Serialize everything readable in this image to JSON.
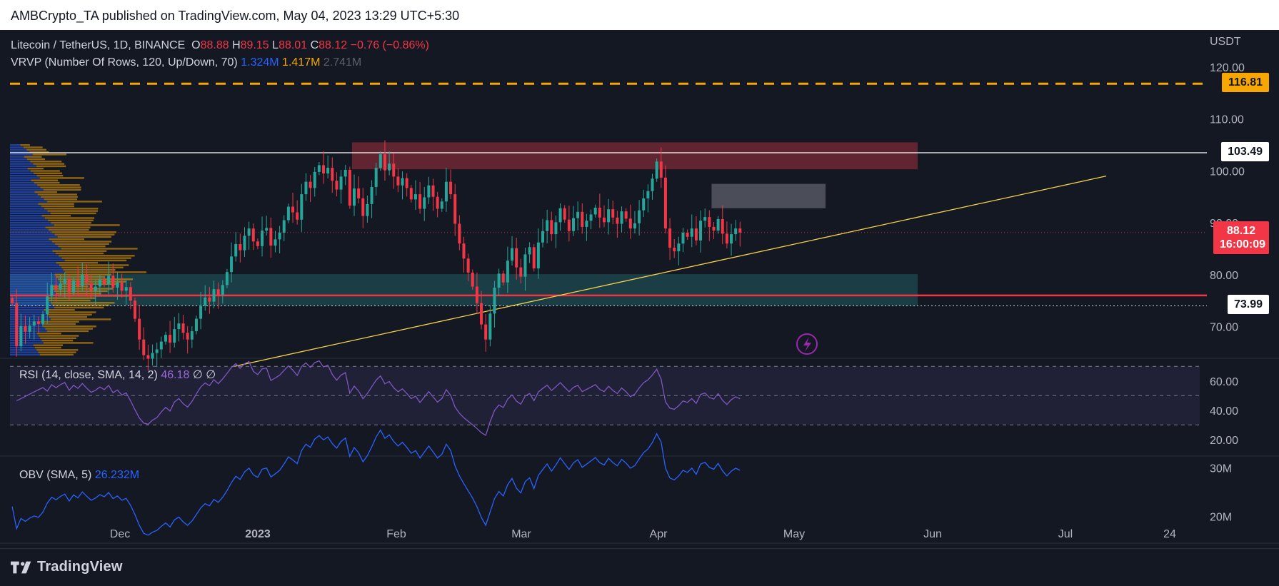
{
  "header": {
    "published_by": "AMBCrypto_TA published on TradingView.com, May 04, 2023 13:29 UTC+5:30"
  },
  "legend": {
    "symbol": "Litecoin / TetherUS, 1D, BINANCE",
    "o_label": "O",
    "o_value": "88.88",
    "h_label": "H",
    "h_value": "89.15",
    "l_label": "L",
    "l_value": "88.01",
    "c_label": "C",
    "c_value": "88.12",
    "change": "−0.76 (−0.86%)",
    "vrvp_label": "VRVP (Number Of Rows, 120, Up/Down, 70)",
    "vrvp_up": "1.324M",
    "vrvp_down": "1.417M",
    "vrvp_total": "2.741M"
  },
  "price_axis": {
    "currency": "USDT",
    "ticks": [
      "120.00",
      "110.00",
      "100.00",
      "90.00",
      "80.00",
      "70.00"
    ],
    "tag_upper": "116.81",
    "tag_resistance": "103.49",
    "tag_current": "88.12",
    "tag_countdown": "16:00:09",
    "tag_support": "73.99"
  },
  "rsi": {
    "label": "RSI (14, close, SMA, 14, 2)",
    "value": "46.18",
    "extra": "∅ ∅",
    "ticks": [
      "60.00",
      "40.00",
      "20.00"
    ]
  },
  "obv": {
    "label": "OBV (SMA, 5)",
    "value": "26.232M",
    "ticks": [
      "30M",
      "20M"
    ]
  },
  "time_axis": [
    "Dec",
    "2023",
    "Feb",
    "Mar",
    "Apr",
    "May",
    "Jun",
    "Jul",
    "24"
  ],
  "brand": {
    "name": "TradingView"
  },
  "colors": {
    "background": "#141823",
    "up": "#26a69a",
    "down": "#f23645",
    "rsi_line": "#7e57c2",
    "obv_line": "#2962ff",
    "trendline": "#f7d34a",
    "resistance_zone": "#7a2a36",
    "support_zone": "#1e4a52",
    "grey_zone": "#5d606b"
  },
  "chart_data": {
    "type": "candlestick",
    "title": "Litecoin / TetherUS, 1D, BINANCE",
    "ylabel": "USDT",
    "ylim": [
      62,
      123
    ],
    "x_start": "2022-11-10",
    "x_end": "2023-05-04",
    "levels": {
      "dashed_orange": 116.81,
      "resistance_line": 103.49,
      "support_red": 76.0,
      "support_dotted": 73.99
    },
    "zones": [
      {
        "name": "resistance",
        "x_from": "2023-01-27",
        "x_to": "2023-06-05",
        "y_from": 100.3,
        "y_to": 105.5
      },
      {
        "name": "grey-gap",
        "x_from": "2023-04-19",
        "x_to": "2023-05-15",
        "y_from": 92.8,
        "y_to": 97.5
      },
      {
        "name": "support",
        "x_from": "2022-11-10",
        "x_to": "2023-06-05",
        "y_from": 74.0,
        "y_to": 80.1
      }
    ],
    "trendline": {
      "x1": "2022-12-31",
      "y1": 62.3,
      "x2": "2023-07-18",
      "y2": 99.0
    },
    "closes": [
      74.5,
      66.2,
      70.1,
      69.0,
      70.2,
      71.0,
      70.5,
      72.4,
      75.8,
      78.0,
      77.1,
      78.3,
      79.2,
      76.6,
      78.9,
      77.8,
      80.0,
      78.4,
      76.9,
      77.7,
      79.0,
      78.2,
      79.8,
      77.5,
      78.5,
      76.9,
      77.6,
      75.0,
      71.5,
      67.5,
      64.5,
      63.8,
      64.9,
      65.6,
      67.1,
      68.4,
      66.9,
      69.5,
      70.6,
      68.8,
      67.5,
      69.1,
      71.5,
      74.0,
      75.6,
      74.8,
      77.2,
      76.1,
      78.0,
      80.5,
      83.5,
      85.9,
      84.7,
      87.5,
      88.9,
      86.4,
      85.5,
      88.5,
      89.0,
      85.6,
      86.8,
      88.1,
      90.5,
      93.1,
      92.0,
      90.6,
      95.5,
      97.9,
      96.7,
      99.8,
      101.1,
      99.5,
      100.6,
      98.1,
      96.4,
      98.9,
      100.2,
      93.3,
      96.6,
      94.7,
      91.3,
      93.6,
      96.9,
      100.6,
      103.2,
      100.1,
      101.4,
      98.9,
      97.2,
      98.6,
      96.7,
      94.5,
      95.5,
      92.7,
      94.9,
      97.2,
      95.0,
      92.7,
      94.1,
      97.9,
      95.5,
      89.8,
      86.0,
      83.1,
      80.4,
      77.7,
      74.5,
      70.4,
      67.5,
      72.5,
      77.5,
      80.2,
      78.5,
      82.7,
      85.1,
      81.4,
      79.6,
      83.9,
      85.3,
      81.2,
      86.2,
      88.4,
      90.5,
      87.8,
      90.1,
      92.8,
      90.6,
      88.4,
      90.9,
      92.1,
      89.2,
      90.4,
      91.6,
      92.9,
      91.0,
      90.1,
      92.6,
      91.0,
      89.8,
      92.2,
      90.8,
      88.9,
      89.9,
      92.4,
      94.7,
      96.1,
      98.5,
      101.8,
      98.7,
      88.9,
      85.2,
      84.5,
      86.0,
      88.1,
      87.3,
      88.9,
      86.6,
      90.4,
      91.1,
      89.2,
      88.5,
      90.7,
      87.9,
      86.0,
      87.8,
      88.9,
      88.12
    ],
    "rsi": {
      "levels": {
        "upper": 70,
        "middle": 50,
        "lower": 30
      },
      "ylim": [
        18,
        75
      ],
      "current": 46.18
    },
    "obv": {
      "current_millions": 26.232,
      "ylim": [
        16,
        30.5
      ]
    }
  }
}
